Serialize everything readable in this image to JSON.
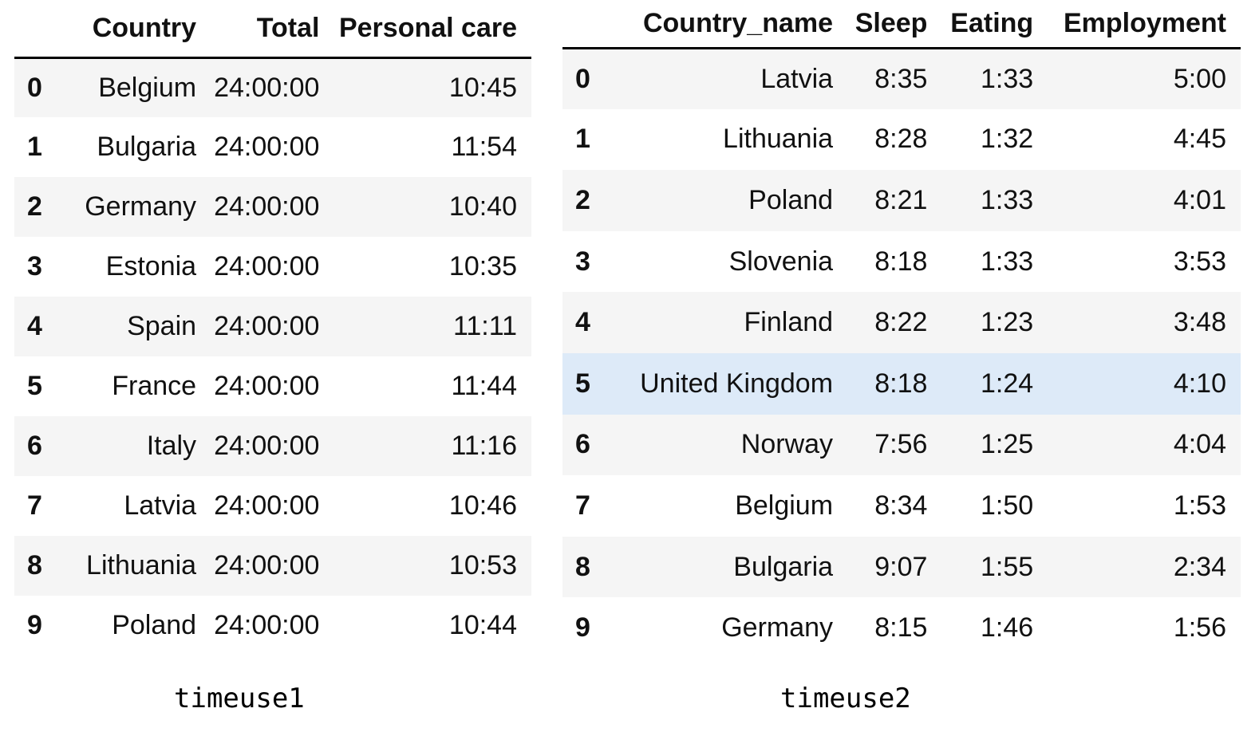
{
  "table1": {
    "caption": "timeuse1",
    "columns": [
      "",
      "Country",
      "Total",
      "Personal care"
    ],
    "rows": [
      [
        "0",
        "Belgium",
        "24:00:00",
        "10:45"
      ],
      [
        "1",
        "Bulgaria",
        "24:00:00",
        "11:54"
      ],
      [
        "2",
        "Germany",
        "24:00:00",
        "10:40"
      ],
      [
        "3",
        "Estonia",
        "24:00:00",
        "10:35"
      ],
      [
        "4",
        "Spain",
        "24:00:00",
        "11:11"
      ],
      [
        "5",
        "France",
        "24:00:00",
        "11:44"
      ],
      [
        "6",
        "Italy",
        "24:00:00",
        "11:16"
      ],
      [
        "7",
        "Latvia",
        "24:00:00",
        "10:46"
      ],
      [
        "8",
        "Lithuania",
        "24:00:00",
        "10:53"
      ],
      [
        "9",
        "Poland",
        "24:00:00",
        "10:44"
      ]
    ]
  },
  "table2": {
    "caption": "timeuse2",
    "columns": [
      "",
      "Country_name",
      "Sleep",
      "Eating",
      "Employment"
    ],
    "highlighted_row": "5",
    "rows": [
      [
        "0",
        "Latvia",
        "8:35",
        "1:33",
        "5:00"
      ],
      [
        "1",
        "Lithuania",
        "8:28",
        "1:32",
        "4:45"
      ],
      [
        "2",
        "Poland",
        "8:21",
        "1:33",
        "4:01"
      ],
      [
        "3",
        "Slovenia",
        "8:18",
        "1:33",
        "3:53"
      ],
      [
        "4",
        "Finland",
        "8:22",
        "1:23",
        "3:48"
      ],
      [
        "5",
        "United Kingdom",
        "8:18",
        "1:24",
        "4:10"
      ],
      [
        "6",
        "Norway",
        "7:56",
        "1:25",
        "4:04"
      ],
      [
        "7",
        "Belgium",
        "8:34",
        "1:50",
        "1:53"
      ],
      [
        "8",
        "Bulgaria",
        "9:07",
        "1:55",
        "2:34"
      ],
      [
        "9",
        "Germany",
        "8:15",
        "1:46",
        "1:56"
      ]
    ]
  },
  "colors": {
    "stripe": "#f5f5f5",
    "highlight": "#ddeaf8",
    "rule": "#000000"
  }
}
